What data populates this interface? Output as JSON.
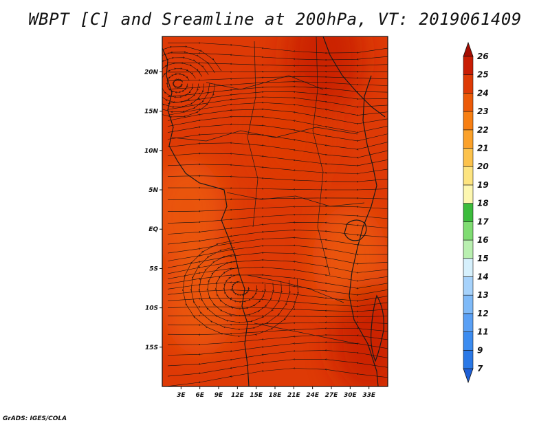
{
  "title": "WBPT [C] and Sreamline at 200hPa, VT: 2019061409",
  "credit": "GrADS: IGES/COLA",
  "chart_data": {
    "type": "heatmap",
    "title": "WBPT [C] and Sreamline at 200hPa, VT: 2019061409",
    "field": "WBPT [C]",
    "overlay": "streamlines",
    "level": "200hPa",
    "valid_time": "2019061409",
    "lon_range": [
      0,
      36
    ],
    "lat_range": [
      -20,
      24.5
    ],
    "x_ticks": [
      {
        "value": 3,
        "label": "3E"
      },
      {
        "value": 6,
        "label": "6E"
      },
      {
        "value": 9,
        "label": "9E"
      },
      {
        "value": 12,
        "label": "12E"
      },
      {
        "value": 15,
        "label": "15E"
      },
      {
        "value": 18,
        "label": "18E"
      },
      {
        "value": 21,
        "label": "21E"
      },
      {
        "value": 24,
        "label": "24E"
      },
      {
        "value": 27,
        "label": "27E"
      },
      {
        "value": 30,
        "label": "30E"
      },
      {
        "value": 33,
        "label": "33E"
      }
    ],
    "y_ticks": [
      {
        "value": 20,
        "label": "20N"
      },
      {
        "value": 15,
        "label": "15N"
      },
      {
        "value": 10,
        "label": "10N"
      },
      {
        "value": 5,
        "label": "5N"
      },
      {
        "value": 0,
        "label": "EQ"
      },
      {
        "value": -5,
        "label": "5S"
      },
      {
        "value": -10,
        "label": "10S"
      },
      {
        "value": -15,
        "label": "15S"
      }
    ],
    "colorbar": {
      "labels": [
        "7",
        "9",
        "11",
        "12",
        "13",
        "14",
        "15",
        "16",
        "17",
        "18",
        "19",
        "20",
        "21",
        "22",
        "23",
        "24",
        "25",
        "26"
      ],
      "colors": [
        "#1e5fd6",
        "#2a78e6",
        "#3c8cf0",
        "#5aa0f5",
        "#7fbaf8",
        "#a6d2fb",
        "#d6f0fc",
        "#b9efb0",
        "#7fdc72",
        "#3cbc3c",
        "#fdf7b0",
        "#fde480",
        "#fcc24c",
        "#fba12a",
        "#f77f12",
        "#ec5a08",
        "#de3a06",
        "#c81d04",
        "#a50d02"
      ]
    },
    "regions": [
      {
        "lon": 18,
        "lat": 0,
        "value": 24
      },
      {
        "lon": 4,
        "lat": 2,
        "value": 23
      },
      {
        "lon": 6,
        "lat": -9,
        "value": 23
      },
      {
        "lon": 30,
        "lat": -4,
        "value": 23
      },
      {
        "lon": 20,
        "lat": 12,
        "value": 24
      },
      {
        "lon": 26,
        "lat": 22,
        "value": 25
      },
      {
        "lon": 33,
        "lat": -14,
        "value": 25
      }
    ],
    "grid": false
  }
}
